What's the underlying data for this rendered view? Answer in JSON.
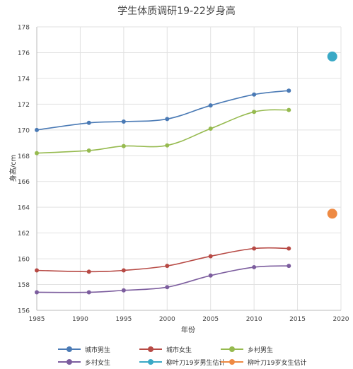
{
  "chart_data": {
    "type": "line",
    "title": "学生体质调研19-22岁身高",
    "xlabel": "年份",
    "ylabel": "身高/cm",
    "xlim": [
      1985,
      2020
    ],
    "ylim": [
      156,
      178
    ],
    "xticks": [
      "1985",
      "1990",
      "1995",
      "2000",
      "2005",
      "2010",
      "2015",
      "2020"
    ],
    "yticks": [
      "156",
      "158",
      "160",
      "162",
      "164",
      "166",
      "168",
      "170",
      "172",
      "174",
      "176",
      "178"
    ],
    "grid": true,
    "legend_position": "bottom",
    "series": [
      {
        "name": "城市男生",
        "color": "#4a7ab5",
        "x": [
          1985,
          1991,
          1995,
          2000,
          2005,
          2010,
          2014
        ],
        "y": [
          170.0,
          170.55,
          170.65,
          170.85,
          171.9,
          172.75,
          173.05
        ]
      },
      {
        "name": "城市女生",
        "color": "#b74a45",
        "x": [
          1985,
          1991,
          1995,
          2000,
          2005,
          2010,
          2014
        ],
        "y": [
          159.1,
          159.0,
          159.1,
          159.45,
          160.2,
          160.8,
          160.8
        ]
      },
      {
        "name": "乡村男生",
        "color": "#96ba4f",
        "x": [
          1985,
          1991,
          1995,
          2000,
          2005,
          2010,
          2014
        ],
        "y": [
          168.2,
          168.4,
          168.75,
          168.8,
          170.1,
          171.4,
          171.55
        ]
      },
      {
        "name": "乡村女生",
        "color": "#7c5d9e",
        "x": [
          1985,
          1991,
          1995,
          2000,
          2005,
          2010,
          2014
        ],
        "y": [
          157.4,
          157.4,
          157.55,
          157.8,
          158.7,
          159.35,
          159.45
        ]
      },
      {
        "name": "柳叶刀19岁男生估计",
        "color": "#3aa9c6",
        "marker": "large-dot",
        "x": [
          2019
        ],
        "y": [
          175.7
        ]
      },
      {
        "name": "柳叶刀19岁女生估计",
        "color": "#ee8a43",
        "marker": "large-dot",
        "x": [
          2019
        ],
        "y": [
          163.5
        ]
      }
    ]
  }
}
